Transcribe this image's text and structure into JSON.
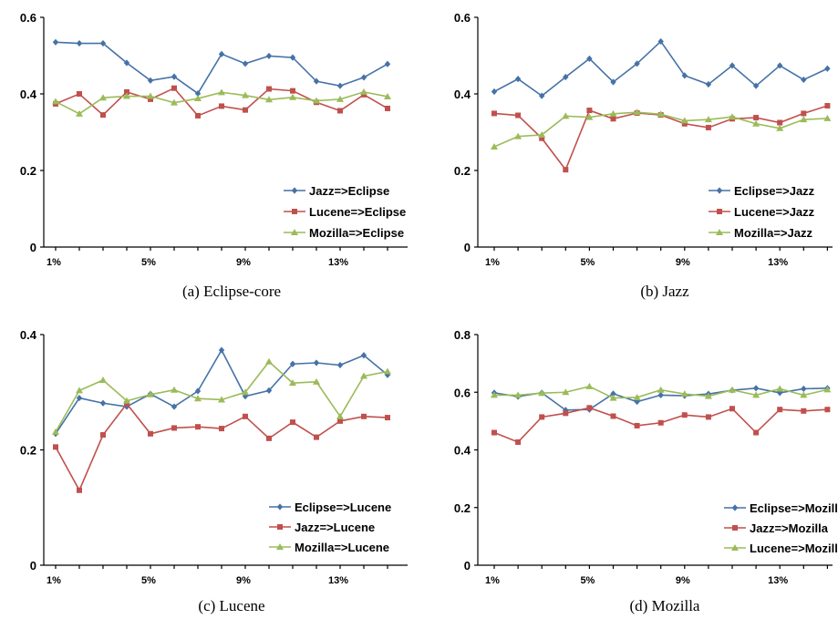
{
  "colors": {
    "blue": "#4572a7",
    "red": "#c0504d",
    "green": "#9bbb59",
    "axis": "#000000"
  },
  "chart_data": [
    {
      "type": "line",
      "caption": "(a)  Eclipse-core",
      "x": [
        1,
        2,
        3,
        4,
        5,
        6,
        7,
        8,
        9,
        10,
        11,
        12,
        13,
        14,
        15
      ],
      "x_tick_labels": [
        "1%",
        "5%",
        "9%",
        "13%"
      ],
      "x_tick_positions": [
        1,
        5,
        9,
        13
      ],
      "ylim": [
        0,
        0.6
      ],
      "y_ticks": [
        0,
        0.2,
        0.4,
        0.6
      ],
      "y_tick_labels": [
        "0",
        "0.2",
        "0.4",
        "0.6"
      ],
      "legend_position": "right",
      "series": [
        {
          "name": "Jazz=>Eclipse",
          "color": "blue",
          "marker": "diamond",
          "values": [
            0.535,
            0.532,
            0.532,
            0.481,
            0.435,
            0.445,
            0.401,
            0.504,
            0.479,
            0.499,
            0.495,
            0.433,
            0.421,
            0.443,
            0.478
          ]
        },
        {
          "name": "Lucene=>Eclipse",
          "color": "red",
          "marker": "square",
          "values": [
            0.374,
            0.4,
            0.345,
            0.405,
            0.386,
            0.415,
            0.343,
            0.368,
            0.358,
            0.413,
            0.408,
            0.378,
            0.356,
            0.398,
            0.362
          ]
        },
        {
          "name": "Mozilla=>Eclipse",
          "color": "green",
          "marker": "triangle",
          "values": [
            0.38,
            0.348,
            0.39,
            0.394,
            0.394,
            0.377,
            0.388,
            0.404,
            0.396,
            0.385,
            0.391,
            0.382,
            0.386,
            0.405,
            0.393
          ]
        }
      ]
    },
    {
      "type": "line",
      "caption": "(b)  Jazz",
      "x": [
        1,
        2,
        3,
        4,
        5,
        6,
        7,
        8,
        9,
        10,
        11,
        12,
        13,
        14,
        15
      ],
      "x_tick_labels": [
        "1%",
        "5%",
        "9%",
        "13%"
      ],
      "x_tick_positions": [
        1,
        5,
        9,
        13
      ],
      "ylim": [
        0,
        0.6
      ],
      "y_ticks": [
        0,
        0.2,
        0.4,
        0.6
      ],
      "y_tick_labels": [
        "0",
        "0.2",
        "0.4",
        "0.6"
      ],
      "legend_position": "right",
      "series": [
        {
          "name": "Eclipse=>Jazz",
          "color": "blue",
          "marker": "diamond",
          "values": [
            0.406,
            0.439,
            0.395,
            0.444,
            0.492,
            0.431,
            0.479,
            0.537,
            0.448,
            0.425,
            0.474,
            0.421,
            0.474,
            0.437,
            0.466
          ]
        },
        {
          "name": "Lucene=>Jazz",
          "color": "red",
          "marker": "square",
          "values": [
            0.349,
            0.344,
            0.284,
            0.202,
            0.357,
            0.335,
            0.35,
            0.345,
            0.322,
            0.312,
            0.335,
            0.338,
            0.325,
            0.349,
            0.369
          ]
        },
        {
          "name": "Mozilla=>Jazz",
          "color": "green",
          "marker": "triangle",
          "values": [
            0.262,
            0.289,
            0.293,
            0.342,
            0.339,
            0.348,
            0.352,
            0.347,
            0.33,
            0.333,
            0.34,
            0.322,
            0.31,
            0.333,
            0.336
          ]
        }
      ]
    },
    {
      "type": "line",
      "caption": "(c)  Lucene",
      "x": [
        1,
        2,
        3,
        4,
        5,
        6,
        7,
        8,
        9,
        10,
        11,
        12,
        13,
        14,
        15
      ],
      "x_tick_labels": [
        "1%",
        "5%",
        "9%",
        "13%"
      ],
      "x_tick_positions": [
        1,
        5,
        9,
        13
      ],
      "ylim": [
        0,
        0.4
      ],
      "y_ticks": [
        0,
        0.2,
        0.4
      ],
      "y_tick_labels": [
        "0",
        "0.2",
        "0.4"
      ],
      "legend_position": "right",
      "series": [
        {
          "name": "Eclipse=>Lucene",
          "color": "blue",
          "marker": "diamond",
          "values": [
            0.228,
            0.29,
            0.281,
            0.275,
            0.297,
            0.275,
            0.302,
            0.373,
            0.293,
            0.303,
            0.349,
            0.351,
            0.347,
            0.364,
            0.33
          ]
        },
        {
          "name": "Jazz=>Lucene",
          "color": "red",
          "marker": "square",
          "values": [
            0.205,
            0.13,
            0.226,
            0.28,
            0.228,
            0.238,
            0.24,
            0.237,
            0.258,
            0.22,
            0.248,
            0.222,
            0.25,
            0.258,
            0.256
          ]
        },
        {
          "name": "Mozilla=>Lucene",
          "color": "green",
          "marker": "triangle",
          "values": [
            0.231,
            0.303,
            0.321,
            0.285,
            0.296,
            0.304,
            0.289,
            0.287,
            0.3,
            0.353,
            0.316,
            0.318,
            0.258,
            0.328,
            0.336
          ]
        }
      ]
    },
    {
      "type": "line",
      "caption": "(d)  Mozilla",
      "x": [
        1,
        2,
        3,
        4,
        5,
        6,
        7,
        8,
        9,
        10,
        11,
        12,
        13,
        14,
        15
      ],
      "x_tick_labels": [
        "1%",
        "5%",
        "9%",
        "13%"
      ],
      "x_tick_positions": [
        1,
        5,
        9,
        13
      ],
      "ylim": [
        0,
        0.8
      ],
      "y_ticks": [
        0,
        0.2,
        0.4,
        0.6,
        0.8
      ],
      "y_tick_labels": [
        "0",
        "0.2",
        "0.4",
        "0.6",
        "0.8"
      ],
      "legend_position": "right",
      "series": [
        {
          "name": "Eclipse=>Mozilla",
          "color": "blue",
          "marker": "diamond",
          "values": [
            0.598,
            0.585,
            0.598,
            0.538,
            0.54,
            0.595,
            0.567,
            0.59,
            0.588,
            0.594,
            0.607,
            0.614,
            0.598,
            0.612,
            0.614
          ]
        },
        {
          "name": "Jazz=>Mozilla",
          "color": "red",
          "marker": "square",
          "values": [
            0.46,
            0.427,
            0.514,
            0.527,
            0.546,
            0.517,
            0.484,
            0.494,
            0.521,
            0.514,
            0.543,
            0.46,
            0.54,
            0.535,
            0.54
          ]
        },
        {
          "name": "Lucene=>Mozilla",
          "color": "green",
          "marker": "triangle",
          "values": [
            0.59,
            0.59,
            0.597,
            0.6,
            0.62,
            0.58,
            0.582,
            0.608,
            0.594,
            0.586,
            0.608,
            0.59,
            0.612,
            0.59,
            0.609
          ]
        }
      ]
    }
  ]
}
